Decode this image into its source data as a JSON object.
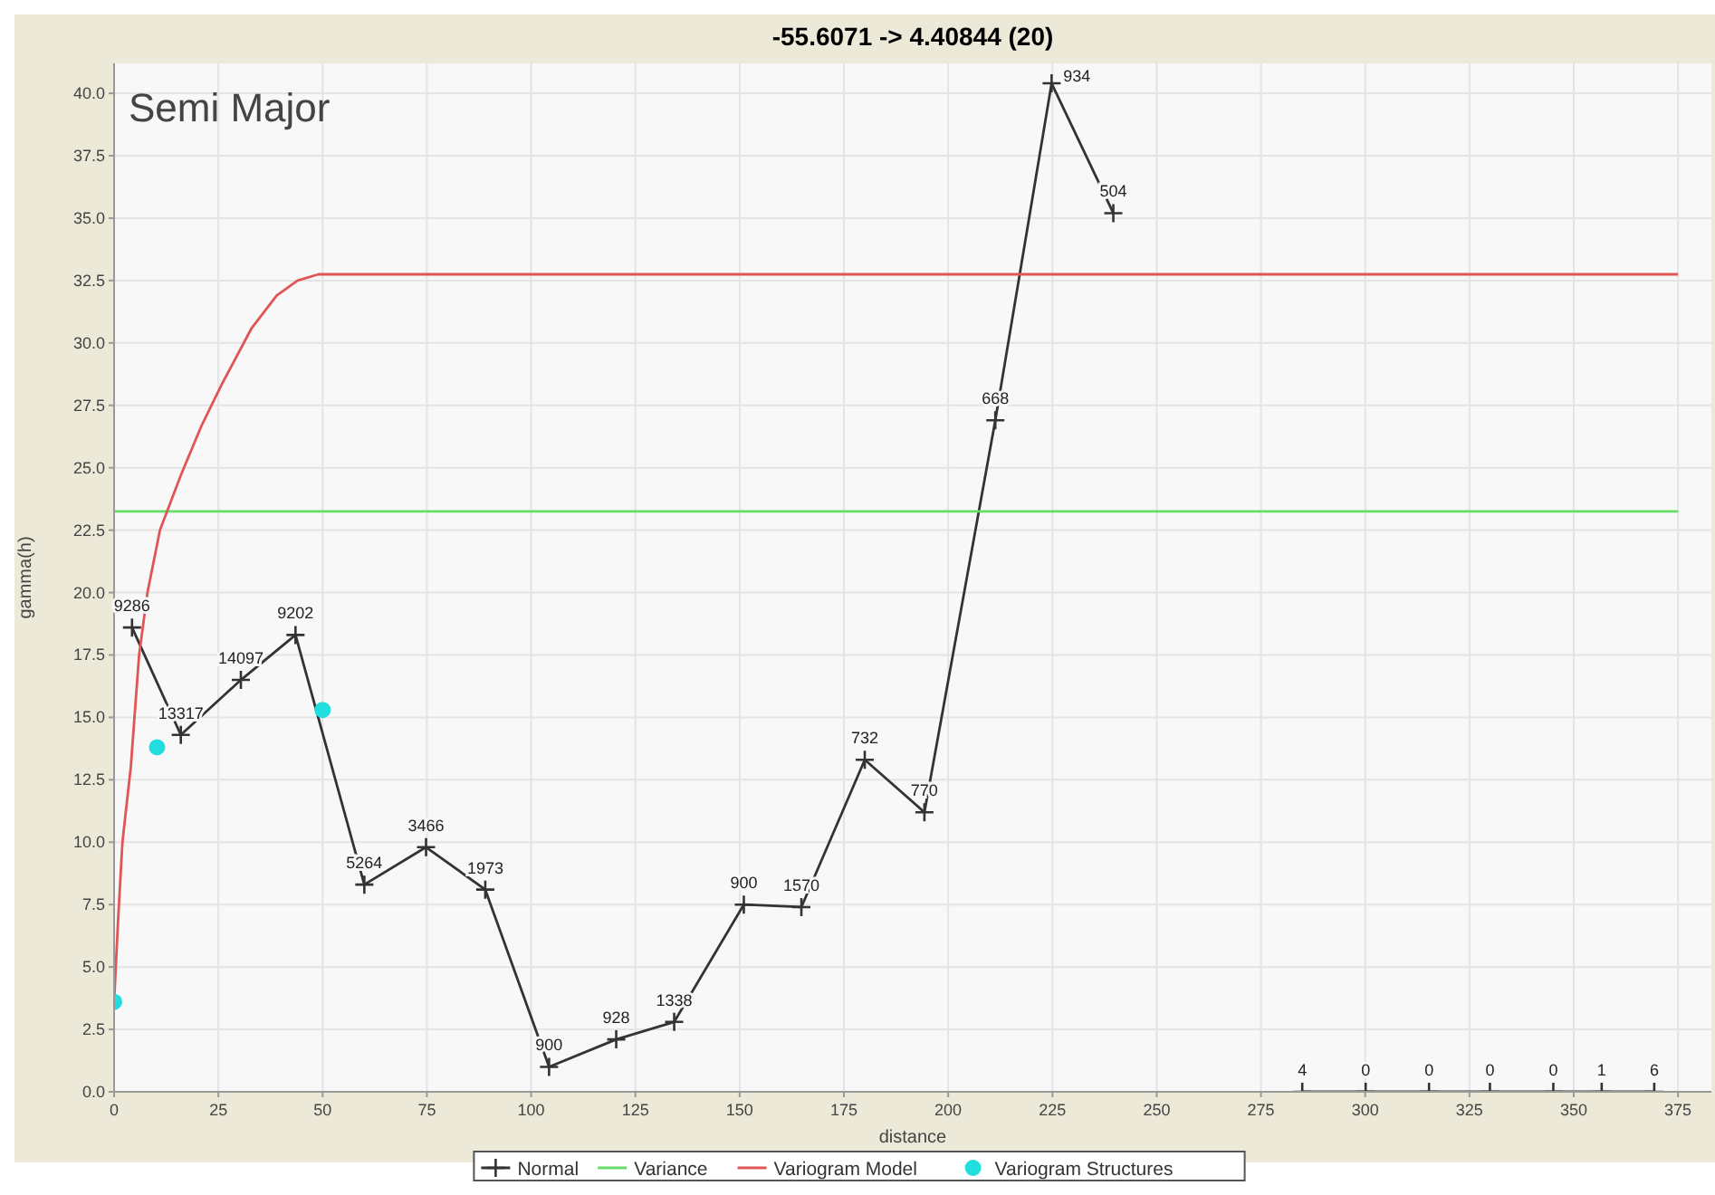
{
  "chart_data": {
    "type": "line",
    "title": "-55.6071 -> 4.40844 (20)",
    "xlabel": "distance",
    "ylabel": "gamma(h)",
    "annotations": [
      "Semi Major",
      {
        "text": "9286",
        "x": 4.3,
        "y": 18.6
      },
      {
        "text": "13317",
        "x": 16,
        "y": 14.3
      },
      {
        "text": "14097",
        "x": 30.4,
        "y": 16.5
      },
      {
        "text": "9202",
        "x": 43.5,
        "y": 18.3
      },
      {
        "text": "5264",
        "x": 60,
        "y": 8.3
      },
      {
        "text": "3466",
        "x": 74.8,
        "y": 9.8
      },
      {
        "text": "1973",
        "x": 89,
        "y": 8.1
      },
      {
        "text": "900",
        "x": 104.3,
        "y": 1.0
      },
      {
        "text": "928",
        "x": 120.4,
        "y": 2.1
      },
      {
        "text": "1338",
        "x": 134.3,
        "y": 2.8
      },
      {
        "text": "900",
        "x": 151,
        "y": 7.5
      },
      {
        "text": "1570",
        "x": 164.8,
        "y": 7.4
      },
      {
        "text": "732",
        "x": 180,
        "y": 13.3
      },
      {
        "text": "770",
        "x": 194.3,
        "y": 11.2
      },
      {
        "text": "668",
        "x": 211.3,
        "y": 26.9
      },
      {
        "text": "934",
        "x": 224.8,
        "y": 40.4
      },
      {
        "text": "504",
        "x": 239.6,
        "y": 35.2
      },
      {
        "text": "4",
        "x": 284.9,
        "y": 0
      },
      {
        "text": "0",
        "x": 300.1,
        "y": 0
      },
      {
        "text": "0",
        "x": 315.3,
        "y": 0
      },
      {
        "text": "0",
        "x": 329.9,
        "y": 0
      },
      {
        "text": "0",
        "x": 345.1,
        "y": 0
      },
      {
        "text": "1",
        "x": 356.7,
        "y": 0
      },
      {
        "text": "6",
        "x": 369.3,
        "y": 0
      }
    ],
    "xlim": [
      0,
      383
    ],
    "ylim": [
      0,
      41.2
    ],
    "xticks": [
      0,
      25,
      50,
      75,
      100,
      125,
      150,
      175,
      200,
      225,
      250,
      275,
      300,
      325,
      350,
      375
    ],
    "yticks": [
      {
        "value": 0,
        "label": "0.0"
      },
      {
        "value": 2.5,
        "label": "2.5"
      },
      {
        "value": 5,
        "label": "5.0"
      },
      {
        "value": 7.5,
        "label": "7.5"
      },
      {
        "value": 10,
        "label": "10.0"
      },
      {
        "value": 12.5,
        "label": "12.5"
      },
      {
        "value": 15,
        "label": "15.0"
      },
      {
        "value": 17.5,
        "label": "17.5"
      },
      {
        "value": 20,
        "label": "20.0"
      },
      {
        "value": 22.5,
        "label": "22.5"
      },
      {
        "value": 25,
        "label": "25.0"
      },
      {
        "value": 27.5,
        "label": "27.5"
      },
      {
        "value": 30,
        "label": "30.0"
      },
      {
        "value": 32.5,
        "label": "32.5"
      },
      {
        "value": 35,
        "label": "35.0"
      },
      {
        "value": 37.5,
        "label": "37.5"
      },
      {
        "value": 40,
        "label": "40.0"
      }
    ],
    "grid": true,
    "legend": "bottom",
    "series": [
      {
        "name": "Normal",
        "color": "#333333",
        "marker": "cross",
        "x": [
          4.3,
          16,
          30.4,
          43.5,
          60,
          74.8,
          89,
          104.3,
          120.4,
          134.3,
          151,
          164.8,
          180,
          194.3,
          211.3,
          224.8,
          239.6,
          271.7,
          284.9,
          300.1,
          315.3,
          329.9,
          345.1,
          356.7,
          369.3
        ],
        "values": [
          18.6,
          14.3,
          16.5,
          18.3,
          8.3,
          9.8,
          8.1,
          1.0,
          2.1,
          2.8,
          7.5,
          7.4,
          13.3,
          11.2,
          26.9,
          40.4,
          35.2,
          null,
          0,
          0,
          0,
          0,
          0,
          0,
          0
        ]
      },
      {
        "name": "Variance",
        "color": "#66dd66",
        "marker": "none",
        "x": [
          0,
          375
        ],
        "values": [
          23.25,
          23.25
        ]
      },
      {
        "name": "Variogram Model",
        "color": "#e05555",
        "marker": "none",
        "x": [
          0,
          1,
          2,
          4,
          6,
          8,
          11,
          16,
          21,
          26,
          33,
          39,
          44,
          49,
          375
        ],
        "values": [
          3.6,
          7,
          10,
          13,
          17.5,
          20,
          22.5,
          24.7,
          26.7,
          28.4,
          30.6,
          31.9,
          32.5,
          32.75,
          32.75
        ]
      },
      {
        "name": "Variogram Structures",
        "type": "scatter",
        "color": "#22dddd",
        "marker": "circle",
        "x": [
          0,
          10.3,
          50
        ],
        "values": [
          3.6,
          13.8,
          15.3
        ]
      }
    ]
  }
}
